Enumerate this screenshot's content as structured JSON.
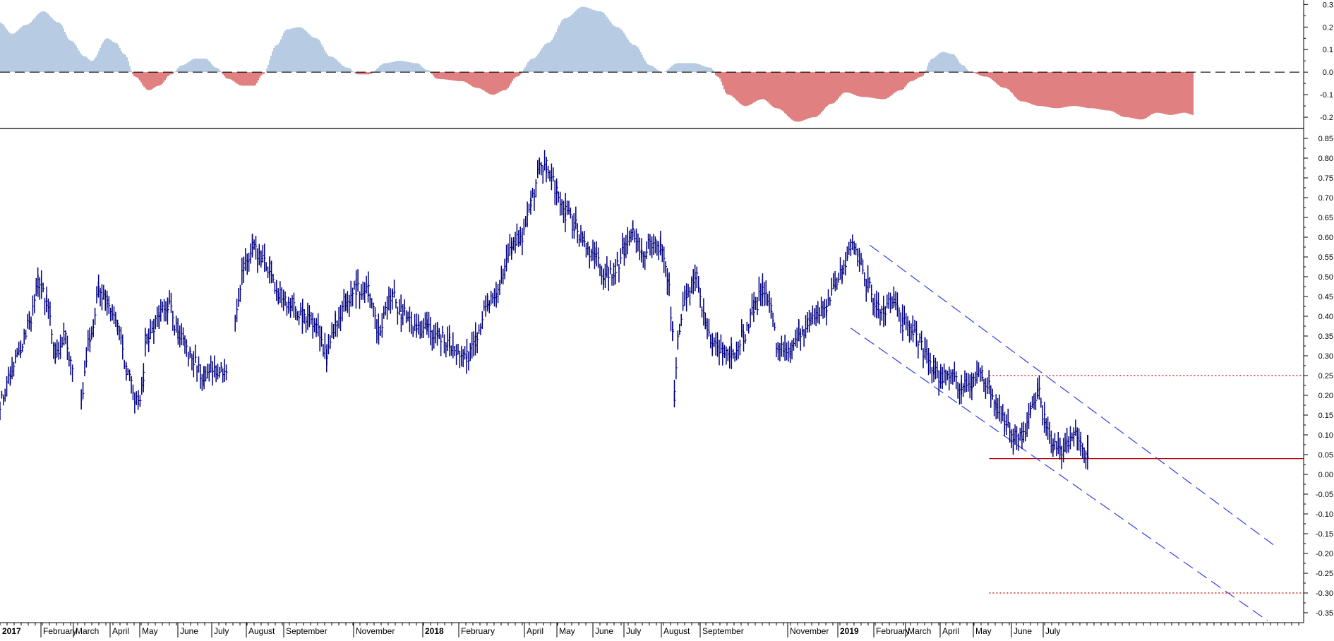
{
  "colors": {
    "background": "#ffffff",
    "price": "#000080",
    "oscillator_positive": "#6f9ac4",
    "oscillator_negative": "#c00000",
    "channel": "#2f3fe0",
    "support": "#c00000",
    "axis": "#000000",
    "zero_line": "#000000"
  },
  "x_axis": {
    "labels": [
      "2017",
      "February",
      "March",
      "April",
      "May",
      "June",
      "July",
      "August",
      "September",
      "November",
      "2018",
      "February",
      "April",
      "May",
      "June",
      "July",
      "August",
      "September",
      "November",
      "2019",
      "February",
      "March",
      "April",
      "May",
      "June",
      "July"
    ],
    "year_labels": [
      "2017",
      "2018",
      "2019"
    ]
  },
  "chart_data": [
    {
      "type": "bar",
      "panel": "oscillator",
      "ylim": [
        -0.25,
        0.32
      ],
      "yticks": [
        "0.3",
        "0.2",
        "0.1",
        "0.0",
        "-0.1",
        "-0.2"
      ],
      "zero_line": true,
      "anchors": [
        [
          0,
          0.22
        ],
        [
          0.7,
          0.17
        ],
        [
          1.5,
          0.21
        ],
        [
          2.5,
          0.27
        ],
        [
          3.4,
          0.22
        ],
        [
          4.1,
          0.14
        ],
        [
          4.9,
          0.07
        ],
        [
          5.3,
          0.05
        ],
        [
          6.2,
          0.15
        ],
        [
          6.7,
          0.13
        ],
        [
          7.2,
          0.08
        ],
        [
          7.8,
          -0.02
        ],
        [
          8.6,
          -0.08
        ],
        [
          9.2,
          -0.06
        ],
        [
          9.9,
          -0.01
        ],
        [
          10.5,
          0.03
        ],
        [
          11.3,
          0.06
        ],
        [
          11.9,
          0.06
        ],
        [
          12.5,
          0.02
        ],
        [
          13.2,
          -0.03
        ],
        [
          14.0,
          -0.06
        ],
        [
          14.7,
          -0.06
        ],
        [
          15.2,
          -0.01
        ],
        [
          16.0,
          0.12
        ],
        [
          16.6,
          0.19
        ],
        [
          17.3,
          0.2
        ],
        [
          18.3,
          0.15
        ],
        [
          19.1,
          0.07
        ],
        [
          20.1,
          0.02
        ],
        [
          20.7,
          -0.01
        ],
        [
          21.3,
          -0.01
        ],
        [
          22.3,
          0.04
        ],
        [
          23.1,
          0.05
        ],
        [
          24.1,
          0.04
        ],
        [
          24.7,
          0.01
        ],
        [
          25.3,
          -0.03
        ],
        [
          26.7,
          -0.04
        ],
        [
          27.6,
          -0.07
        ],
        [
          28.5,
          -0.1
        ],
        [
          29.2,
          -0.08
        ],
        [
          29.9,
          -0.02
        ],
        [
          30.8,
          0.06
        ],
        [
          31.7,
          0.13
        ],
        [
          32.7,
          0.24
        ],
        [
          33.7,
          0.29
        ],
        [
          34.7,
          0.27
        ],
        [
          35.7,
          0.2
        ],
        [
          36.7,
          0.12
        ],
        [
          37.6,
          0.03
        ],
        [
          38.3,
          0.0
        ],
        [
          39.2,
          0.04
        ],
        [
          40.1,
          0.04
        ],
        [
          41.1,
          0.02
        ],
        [
          41.5,
          -0.02
        ],
        [
          42.1,
          -0.1
        ],
        [
          43.1,
          -0.15
        ],
        [
          44.1,
          -0.12
        ],
        [
          44.9,
          -0.16
        ],
        [
          46.1,
          -0.22
        ],
        [
          47.1,
          -0.2
        ],
        [
          48.1,
          -0.14
        ],
        [
          48.9,
          -0.09
        ],
        [
          49.9,
          -0.11
        ],
        [
          51.1,
          -0.12
        ],
        [
          52.1,
          -0.08
        ],
        [
          52.7,
          -0.04
        ],
        [
          53.3,
          -0.02
        ],
        [
          53.9,
          0.06
        ],
        [
          54.5,
          0.09
        ],
        [
          55.1,
          0.08
        ],
        [
          55.7,
          0.03
        ],
        [
          56.1,
          0.0
        ],
        [
          57.0,
          -0.02
        ],
        [
          58.1,
          -0.07
        ],
        [
          59.1,
          -0.13
        ],
        [
          60.1,
          -0.15
        ],
        [
          61.1,
          -0.16
        ],
        [
          62.1,
          -0.15
        ],
        [
          63.1,
          -0.16
        ],
        [
          64.1,
          -0.17
        ],
        [
          65.1,
          -0.2
        ],
        [
          66.0,
          -0.21
        ],
        [
          66.9,
          -0.18
        ],
        [
          67.7,
          -0.19
        ],
        [
          68.5,
          -0.18
        ],
        [
          69.0,
          -0.19
        ]
      ]
    },
    {
      "type": "line",
      "panel": "price",
      "ylim": [
        -0.375,
        0.875
      ],
      "yticks": [
        "0.85",
        "0.80",
        "0.75",
        "0.70",
        "0.65",
        "0.60",
        "0.55",
        "0.50",
        "0.45",
        "0.40",
        "0.35",
        "0.30",
        "0.25",
        "0.20",
        "0.15",
        "0.10",
        "0.05",
        "0.00",
        "-0.05",
        "-0.10",
        "-0.15",
        "-0.20",
        "-0.25",
        "-0.30",
        "-0.35"
      ],
      "anchors": [
        [
          0,
          0.18
        ],
        [
          0.6,
          0.25
        ],
        [
          1.2,
          0.32
        ],
        [
          1.7,
          0.38
        ],
        [
          2.2,
          0.48
        ],
        [
          2.7,
          0.44
        ],
        [
          3.2,
          0.3
        ],
        [
          3.7,
          0.35
        ],
        [
          4.2,
          0.27
        ],
        [
          4.7,
          0.2
        ],
        [
          5.2,
          0.35
        ],
        [
          5.7,
          0.46
        ],
        [
          6.2,
          0.43
        ],
        [
          6.8,
          0.39
        ],
        [
          7.3,
          0.27
        ],
        [
          8.0,
          0.18
        ],
        [
          8.3,
          0.25
        ],
        [
          8.4,
          0.34
        ],
        [
          8.6,
          0.34
        ],
        [
          9.2,
          0.4
        ],
        [
          9.7,
          0.43
        ],
        [
          10.3,
          0.36
        ],
        [
          11.0,
          0.3
        ],
        [
          11.8,
          0.25
        ],
        [
          12.3,
          0.27
        ],
        [
          13.1,
          0.26
        ],
        [
          13.6,
          0.4
        ],
        [
          14.1,
          0.52
        ],
        [
          14.6,
          0.58
        ],
        [
          15.1,
          0.55
        ],
        [
          15.6,
          0.52
        ],
        [
          16.1,
          0.46
        ],
        [
          16.8,
          0.43
        ],
        [
          17.5,
          0.4
        ],
        [
          18.3,
          0.37
        ],
        [
          18.9,
          0.3
        ],
        [
          19.4,
          0.37
        ],
        [
          20.0,
          0.44
        ],
        [
          20.6,
          0.47
        ],
        [
          21.3,
          0.46
        ],
        [
          21.9,
          0.37
        ],
        [
          22.7,
          0.45
        ],
        [
          23.2,
          0.41
        ],
        [
          24.1,
          0.36
        ],
        [
          24.7,
          0.37
        ],
        [
          25.3,
          0.35
        ],
        [
          26.0,
          0.33
        ],
        [
          27.0,
          0.3
        ],
        [
          27.5,
          0.34
        ],
        [
          28.2,
          0.43
        ],
        [
          28.7,
          0.45
        ],
        [
          29.6,
          0.58
        ],
        [
          30.2,
          0.6
        ],
        [
          30.7,
          0.69
        ],
        [
          31.2,
          0.77
        ],
        [
          31.6,
          0.78
        ],
        [
          32.2,
          0.72
        ],
        [
          32.7,
          0.66
        ],
        [
          33.2,
          0.63
        ],
        [
          33.7,
          0.59
        ],
        [
          34.4,
          0.55
        ],
        [
          34.9,
          0.51
        ],
        [
          35.5,
          0.51
        ],
        [
          36.1,
          0.57
        ],
        [
          36.6,
          0.62
        ],
        [
          37.1,
          0.56
        ],
        [
          37.7,
          0.59
        ],
        [
          38.2,
          0.58
        ],
        [
          38.6,
          0.5
        ],
        [
          38.9,
          0.37
        ],
        [
          39.0,
          0.2
        ],
        [
          39.2,
          0.36
        ],
        [
          39.7,
          0.46
        ],
        [
          40.2,
          0.5
        ],
        [
          40.8,
          0.39
        ],
        [
          41.2,
          0.33
        ],
        [
          41.8,
          0.31
        ],
        [
          42.3,
          0.3
        ],
        [
          43.0,
          0.35
        ],
        [
          43.6,
          0.42
        ],
        [
          44.1,
          0.46
        ],
        [
          44.6,
          0.41
        ],
        [
          45.0,
          0.32
        ],
        [
          45.7,
          0.32
        ],
        [
          46.2,
          0.35
        ],
        [
          46.7,
          0.38
        ],
        [
          47.2,
          0.4
        ],
        [
          47.8,
          0.43
        ],
        [
          48.3,
          0.48
        ],
        [
          48.7,
          0.52
        ],
        [
          49.2,
          0.58
        ],
        [
          49.7,
          0.55
        ],
        [
          50.2,
          0.48
        ],
        [
          50.7,
          0.43
        ],
        [
          51.1,
          0.42
        ],
        [
          51.7,
          0.44
        ],
        [
          52.2,
          0.38
        ],
        [
          52.8,
          0.36
        ],
        [
          53.5,
          0.31
        ],
        [
          54.0,
          0.27
        ],
        [
          54.4,
          0.24
        ],
        [
          55.0,
          0.26
        ],
        [
          55.6,
          0.22
        ],
        [
          56.2,
          0.23
        ],
        [
          56.8,
          0.25
        ],
        [
          57.2,
          0.22
        ],
        [
          57.6,
          0.17
        ],
        [
          58.1,
          0.13
        ],
        [
          58.6,
          0.1
        ],
        [
          59.1,
          0.1
        ],
        [
          59.6,
          0.16
        ],
        [
          60.0,
          0.21
        ],
        [
          60.4,
          0.14
        ],
        [
          60.9,
          0.07
        ],
        [
          61.3,
          0.06
        ],
        [
          61.7,
          0.08
        ],
        [
          62.1,
          0.1
        ],
        [
          62.5,
          0.07
        ],
        [
          62.9,
          0.04
        ]
      ],
      "gaps_after_index": [
        8,
        25
      ],
      "channel_upper": [
        [
          50.3,
          0.58
        ],
        [
          73.7,
          -0.18
        ]
      ],
      "channel_lower": [
        [
          49.2,
          0.37
        ],
        [
          73.3,
          -0.37
        ]
      ],
      "levels": [
        {
          "y": 0.25,
          "style": "dotted",
          "x_from": 57.2
        },
        {
          "y": -0.3,
          "style": "dotted",
          "x_from": 57.2
        },
        {
          "y": 0.04,
          "style": "solid",
          "x_from": 57.2
        }
      ]
    }
  ]
}
